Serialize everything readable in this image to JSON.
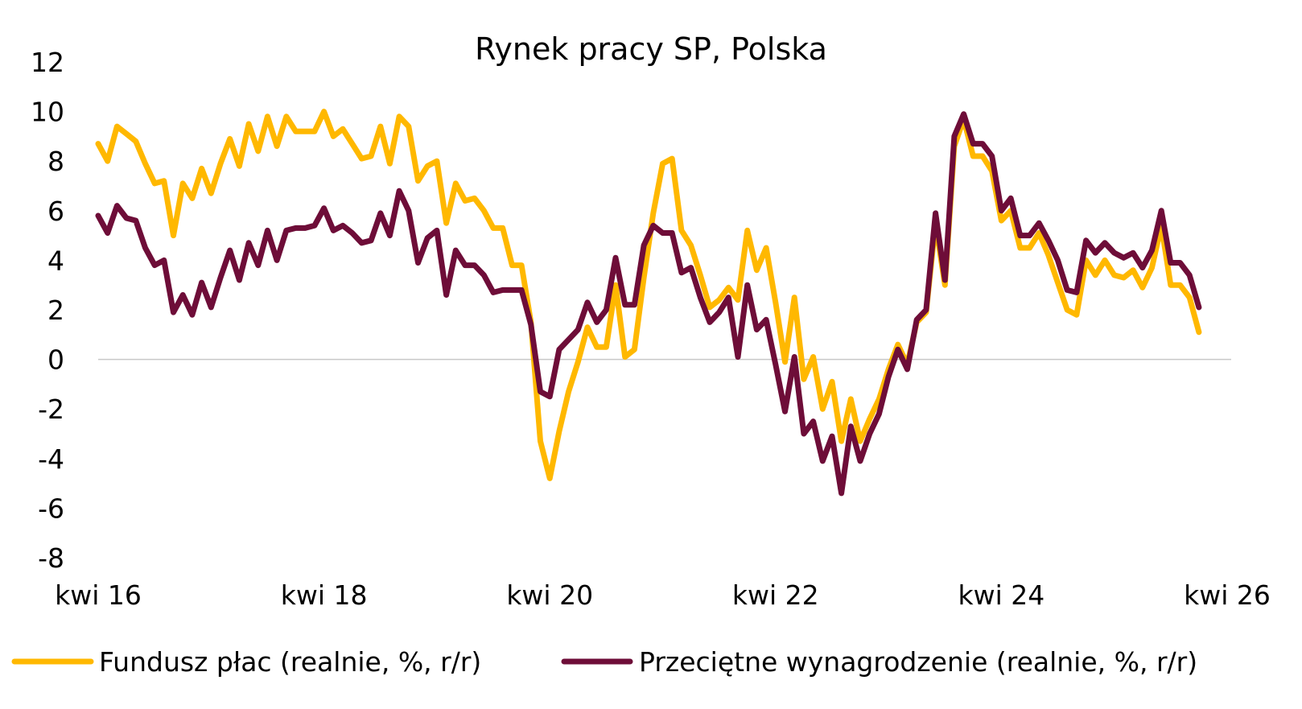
{
  "chart_data": {
    "type": "line",
    "title": "Rynek pracy SP, Polska",
    "xlabel": "",
    "ylabel": "",
    "ylim": [
      -8,
      12
    ],
    "yticks": [
      12,
      10,
      8,
      6,
      4,
      2,
      0,
      -2,
      -4,
      -6,
      -8
    ],
    "x_start": "2016-04",
    "x_end": "2026-04",
    "x_ticks": [
      {
        "label": "kwi 16",
        "x": 0
      },
      {
        "label": "kwi 18",
        "x": 24
      },
      {
        "label": "kwi 20",
        "x": 48
      },
      {
        "label": "kwi 22",
        "x": 72
      },
      {
        "label": "kwi 24",
        "x": 96
      },
      {
        "label": "kwi 26",
        "x": 120
      }
    ],
    "x_unit": "months from kwi 16",
    "grid": false,
    "zero_line": true,
    "legend": "bottom",
    "series": [
      {
        "name": "Fundusz płac (realnie, %, r/r)",
        "color": "#FFB800",
        "points": [
          [
            0,
            8.7
          ],
          [
            1,
            8.0
          ],
          [
            2,
            9.4
          ],
          [
            3,
            9.1
          ],
          [
            4,
            8.8
          ],
          [
            5,
            7.9
          ],
          [
            6,
            7.1
          ],
          [
            7,
            7.2
          ],
          [
            8,
            5.0
          ],
          [
            9,
            7.1
          ],
          [
            10,
            6.5
          ],
          [
            11,
            7.7
          ],
          [
            12,
            6.7
          ],
          [
            13,
            7.9
          ],
          [
            14,
            8.9
          ],
          [
            15,
            7.8
          ],
          [
            16,
            9.5
          ],
          [
            17,
            8.4
          ],
          [
            18,
            9.8
          ],
          [
            19,
            8.6
          ],
          [
            20,
            9.8
          ],
          [
            21,
            9.2
          ],
          [
            22,
            9.2
          ],
          [
            23,
            9.2
          ],
          [
            24,
            10.0
          ],
          [
            25,
            9.0
          ],
          [
            26,
            9.3
          ],
          [
            27,
            8.7
          ],
          [
            28,
            8.1
          ],
          [
            29,
            8.2
          ],
          [
            30,
            9.4
          ],
          [
            31,
            7.9
          ],
          [
            32,
            9.8
          ],
          [
            33,
            9.4
          ],
          [
            34,
            7.2
          ],
          [
            35,
            7.8
          ],
          [
            36,
            8.0
          ],
          [
            37,
            5.5
          ],
          [
            38,
            7.1
          ],
          [
            39,
            6.4
          ],
          [
            40,
            6.5
          ],
          [
            41,
            6.0
          ],
          [
            42,
            5.3
          ],
          [
            43,
            5.3
          ],
          [
            44,
            3.8
          ],
          [
            45,
            3.8
          ],
          [
            46,
            1.5
          ],
          [
            47,
            -3.3
          ],
          [
            48,
            -4.8
          ],
          [
            49,
            -2.9
          ],
          [
            50,
            -1.3
          ],
          [
            51,
            -0.1
          ],
          [
            52,
            1.3
          ],
          [
            53,
            0.5
          ],
          [
            54,
            0.5
          ],
          [
            55,
            3.0
          ],
          [
            56,
            0.1
          ],
          [
            57,
            0.4
          ],
          [
            58,
            3.3
          ],
          [
            59,
            5.9
          ],
          [
            60,
            7.9
          ],
          [
            61,
            8.1
          ],
          [
            62,
            5.2
          ],
          [
            63,
            4.6
          ],
          [
            64,
            3.4
          ],
          [
            65,
            2.1
          ],
          [
            66,
            2.4
          ],
          [
            67,
            2.9
          ],
          [
            68,
            2.4
          ],
          [
            69,
            5.2
          ],
          [
            70,
            3.6
          ],
          [
            71,
            4.5
          ],
          [
            72,
            2.3
          ],
          [
            73,
            -0.1
          ],
          [
            74,
            2.5
          ],
          [
            75,
            -0.8
          ],
          [
            76,
            0.1
          ],
          [
            77,
            -2.0
          ],
          [
            78,
            -0.9
          ],
          [
            79,
            -3.3
          ],
          [
            80,
            -1.6
          ],
          [
            81,
            -3.3
          ],
          [
            82,
            -2.4
          ],
          [
            83,
            -1.6
          ],
          [
            84,
            -0.4
          ],
          [
            85,
            0.6
          ],
          [
            86,
            -0.2
          ],
          [
            87,
            1.5
          ],
          [
            88,
            1.9
          ],
          [
            89,
            5.5
          ],
          [
            90,
            3.0
          ],
          [
            91,
            8.6
          ],
          [
            92,
            9.7
          ],
          [
            93,
            8.2
          ],
          [
            94,
            8.2
          ],
          [
            95,
            7.6
          ],
          [
            96,
            5.6
          ],
          [
            97,
            6.0
          ],
          [
            98,
            4.5
          ],
          [
            99,
            4.5
          ],
          [
            100,
            5.1
          ],
          [
            101,
            4.2
          ],
          [
            102,
            3.1
          ],
          [
            103,
            2.0
          ],
          [
            104,
            1.8
          ],
          [
            105,
            4.0
          ],
          [
            106,
            3.4
          ],
          [
            107,
            4.0
          ],
          [
            108,
            3.4
          ],
          [
            109,
            3.3
          ],
          [
            110,
            3.6
          ],
          [
            111,
            2.9
          ],
          [
            112,
            3.7
          ],
          [
            113,
            5.4
          ],
          [
            114,
            3.0
          ],
          [
            115,
            3.0
          ],
          [
            116,
            2.5
          ],
          [
            117,
            1.1
          ]
        ]
      },
      {
        "name": "Przeciętne wynagrodzenie (realnie, %, r/r)",
        "color": "#6E0D38",
        "points": [
          [
            0,
            5.8
          ],
          [
            1,
            5.1
          ],
          [
            2,
            6.2
          ],
          [
            3,
            5.7
          ],
          [
            4,
            5.6
          ],
          [
            5,
            4.5
          ],
          [
            6,
            3.8
          ],
          [
            7,
            4.0
          ],
          [
            8,
            1.9
          ],
          [
            9,
            2.6
          ],
          [
            10,
            1.8
          ],
          [
            11,
            3.1
          ],
          [
            12,
            2.1
          ],
          [
            13,
            3.3
          ],
          [
            14,
            4.4
          ],
          [
            15,
            3.2
          ],
          [
            16,
            4.7
          ],
          [
            17,
            3.8
          ],
          [
            18,
            5.2
          ],
          [
            19,
            4.0
          ],
          [
            20,
            5.2
          ],
          [
            21,
            5.3
          ],
          [
            22,
            5.3
          ],
          [
            23,
            5.4
          ],
          [
            24,
            6.1
          ],
          [
            25,
            5.2
          ],
          [
            26,
            5.4
          ],
          [
            27,
            5.1
          ],
          [
            28,
            4.7
          ],
          [
            29,
            4.8
          ],
          [
            30,
            5.9
          ],
          [
            31,
            5.0
          ],
          [
            32,
            6.8
          ],
          [
            33,
            6.0
          ],
          [
            34,
            3.9
          ],
          [
            35,
            4.9
          ],
          [
            36,
            5.2
          ],
          [
            37,
            2.6
          ],
          [
            38,
            4.4
          ],
          [
            39,
            3.8
          ],
          [
            40,
            3.8
          ],
          [
            41,
            3.4
          ],
          [
            42,
            2.7
          ],
          [
            43,
            2.8
          ],
          [
            44,
            2.8
          ],
          [
            45,
            2.8
          ],
          [
            46,
            1.4
          ],
          [
            47,
            -1.3
          ],
          [
            48,
            -1.5
          ],
          [
            49,
            0.4
          ],
          [
            50,
            0.8
          ],
          [
            51,
            1.2
          ],
          [
            52,
            2.3
          ],
          [
            53,
            1.5
          ],
          [
            54,
            2.0
          ],
          [
            55,
            4.1
          ],
          [
            56,
            2.2
          ],
          [
            57,
            2.2
          ],
          [
            58,
            4.6
          ],
          [
            59,
            5.4
          ],
          [
            60,
            5.1
          ],
          [
            61,
            5.1
          ],
          [
            62,
            3.5
          ],
          [
            63,
            3.7
          ],
          [
            64,
            2.5
          ],
          [
            65,
            1.5
          ],
          [
            66,
            1.9
          ],
          [
            67,
            2.5
          ],
          [
            68,
            0.1
          ],
          [
            69,
            3.0
          ],
          [
            70,
            1.2
          ],
          [
            71,
            1.6
          ],
          [
            72,
            -0.2
          ],
          [
            73,
            -2.1
          ],
          [
            74,
            0.1
          ],
          [
            75,
            -3.0
          ],
          [
            76,
            -2.5
          ],
          [
            77,
            -4.1
          ],
          [
            78,
            -3.1
          ],
          [
            79,
            -5.4
          ],
          [
            80,
            -2.7
          ],
          [
            81,
            -4.1
          ],
          [
            82,
            -3.0
          ],
          [
            83,
            -2.2
          ],
          [
            84,
            -0.7
          ],
          [
            85,
            0.4
          ],
          [
            86,
            -0.4
          ],
          [
            87,
            1.6
          ],
          [
            88,
            2.0
          ],
          [
            89,
            5.9
          ],
          [
            90,
            3.2
          ],
          [
            91,
            9.0
          ],
          [
            92,
            9.9
          ],
          [
            93,
            8.7
          ],
          [
            94,
            8.7
          ],
          [
            95,
            8.2
          ],
          [
            96,
            6.0
          ],
          [
            97,
            6.5
          ],
          [
            98,
            5.0
          ],
          [
            99,
            5.0
          ],
          [
            100,
            5.5
          ],
          [
            101,
            4.8
          ],
          [
            102,
            4.0
          ],
          [
            103,
            2.8
          ],
          [
            104,
            2.7
          ],
          [
            105,
            4.8
          ],
          [
            106,
            4.3
          ],
          [
            107,
            4.7
          ],
          [
            108,
            4.3
          ],
          [
            109,
            4.1
          ],
          [
            110,
            4.3
          ],
          [
            111,
            3.7
          ],
          [
            112,
            4.4
          ],
          [
            113,
            6.0
          ],
          [
            114,
            3.9
          ],
          [
            115,
            3.9
          ],
          [
            116,
            3.4
          ],
          [
            117,
            2.1
          ]
        ]
      }
    ]
  }
}
